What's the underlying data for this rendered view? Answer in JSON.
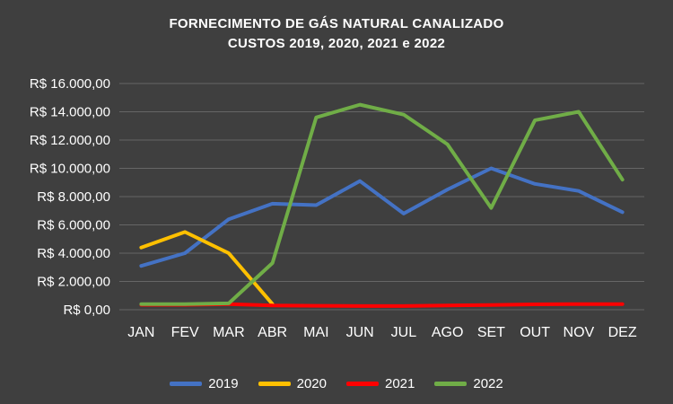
{
  "chart_data": {
    "type": "line",
    "title": "FORNECIMENTO DE GÁS NATURAL CANALIZADO",
    "subtitle": "CUSTOS 2019, 2020, 2021 e 2022",
    "categories": [
      "JAN",
      "FEV",
      "MAR",
      "ABR",
      "MAI",
      "JUN",
      "JUL",
      "AGO",
      "SET",
      "OUT",
      "NOV",
      "DEZ"
    ],
    "series": [
      {
        "name": "2019",
        "color": "#4472C4",
        "values": [
          3100,
          4000,
          6400,
          7500,
          7400,
          9100,
          6800,
          8500,
          10000,
          8900,
          8400,
          6900
        ]
      },
      {
        "name": "2020",
        "color": "#FFC000",
        "values": [
          4400,
          5500,
          4000,
          400,
          null,
          null,
          null,
          null,
          null,
          null,
          null,
          null
        ]
      },
      {
        "name": "2021",
        "color": "#FF0000",
        "values": [
          350,
          350,
          400,
          300,
          280,
          260,
          260,
          300,
          330,
          380,
          400,
          400
        ]
      },
      {
        "name": "2022",
        "color": "#70AD47",
        "values": [
          400,
          400,
          450,
          3300,
          13600,
          14500,
          13800,
          11700,
          7200,
          13400,
          14000,
          9200
        ]
      }
    ],
    "ylim": [
      0,
      16000
    ],
    "yticks": [
      {
        "value": 0,
        "label": "R$ 0,00"
      },
      {
        "value": 2000,
        "label": "R$ 2.000,00"
      },
      {
        "value": 4000,
        "label": "R$ 4.000,00"
      },
      {
        "value": 6000,
        "label": "R$ 6.000,00"
      },
      {
        "value": 8000,
        "label": "R$ 8.000,00"
      },
      {
        "value": 10000,
        "label": "R$ 10.000,00"
      },
      {
        "value": 12000,
        "label": "R$ 12.000,00"
      },
      {
        "value": 14000,
        "label": "R$ 14.000,00"
      },
      {
        "value": 16000,
        "label": "R$ 16.000,00"
      }
    ],
    "grid": true,
    "legend_position": "bottom",
    "background": "#3F3F3F",
    "text_color": "#FFFFFF",
    "gridline_color": "#666666"
  }
}
